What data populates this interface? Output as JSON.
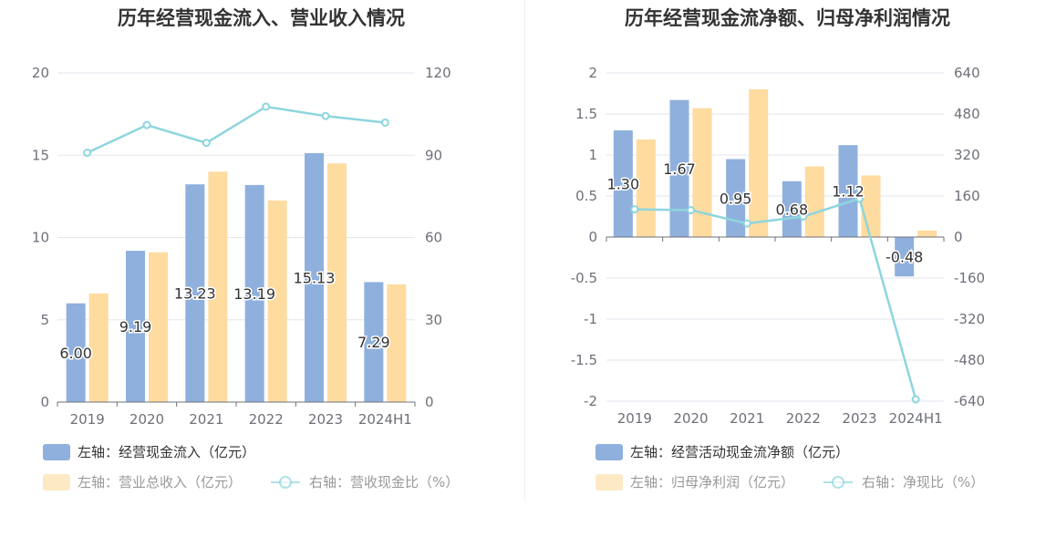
{
  "chart_data": [
    {
      "type": "bar",
      "title": "历年经营现金流入、营业收入情况",
      "categories": [
        "2019",
        "2020",
        "2021",
        "2022",
        "2023",
        "2024H1"
      ],
      "y_left": {
        "min": 0,
        "max": 20,
        "ticks": [
          "0",
          "5",
          "10",
          "15",
          "20"
        ]
      },
      "y_right": {
        "min": 0,
        "max": 120,
        "ticks": [
          "0",
          "30",
          "60",
          "90",
          "120"
        ]
      },
      "series": [
        {
          "name": "左轴：经营现金流入（亿元）",
          "type": "bar",
          "axis": "left",
          "color": "#8fb0dd",
          "values": [
            6.0,
            9.19,
            13.23,
            13.19,
            15.13,
            7.29
          ],
          "labels": [
            "6.00",
            "9.19",
            "13.23",
            "13.19",
            "15.13",
            "7.29"
          ]
        },
        {
          "name": "左轴：营业总收入（亿元）",
          "type": "bar",
          "axis": "left",
          "color": "#fedb9f",
          "values": [
            6.6,
            9.1,
            14.0,
            12.25,
            14.5,
            7.15
          ]
        },
        {
          "name": "右轴：营收现金比（%）",
          "type": "line",
          "axis": "right",
          "color": "#8dd6de",
          "values": [
            90.9,
            101.0,
            94.5,
            107.7,
            104.3,
            101.9
          ]
        }
      ],
      "grid": true,
      "legend_position": "bottom-left"
    },
    {
      "type": "bar",
      "title": "历年经营现金流净额、归母净利润情况",
      "categories": [
        "2019",
        "2020",
        "2021",
        "2022",
        "2023",
        "2024H1"
      ],
      "y_left": {
        "min": -2,
        "max": 2,
        "ticks": [
          "-2",
          "-1.5",
          "-1",
          "-0.5",
          "0",
          "0.5",
          "1",
          "1.5",
          "2"
        ]
      },
      "y_right": {
        "min": -640,
        "max": 640,
        "ticks": [
          "-640",
          "-480",
          "-320",
          "-160",
          "0",
          "160",
          "320",
          "480",
          "640"
        ]
      },
      "series": [
        {
          "name": "左轴：经营活动现金流净额（亿元）",
          "type": "bar",
          "axis": "left",
          "color": "#8fb0dd",
          "values": [
            1.3,
            1.67,
            0.95,
            0.68,
            1.12,
            -0.48
          ],
          "labels": [
            "1.30",
            "1.67",
            "0.95",
            "0.68",
            "1.12",
            "-0.48"
          ]
        },
        {
          "name": "左轴：归母净利润（亿元）",
          "type": "bar",
          "axis": "left",
          "color": "#fedb9f",
          "values": [
            1.19,
            1.57,
            1.8,
            0.86,
            0.75,
            0.08
          ]
        },
        {
          "name": "右轴：净现比（%）",
          "type": "line",
          "axis": "right",
          "color": "#8dd6de",
          "values": [
            108,
            105,
            53,
            80,
            150,
            -633
          ]
        }
      ],
      "grid": true,
      "legend_position": "bottom-left"
    }
  ]
}
